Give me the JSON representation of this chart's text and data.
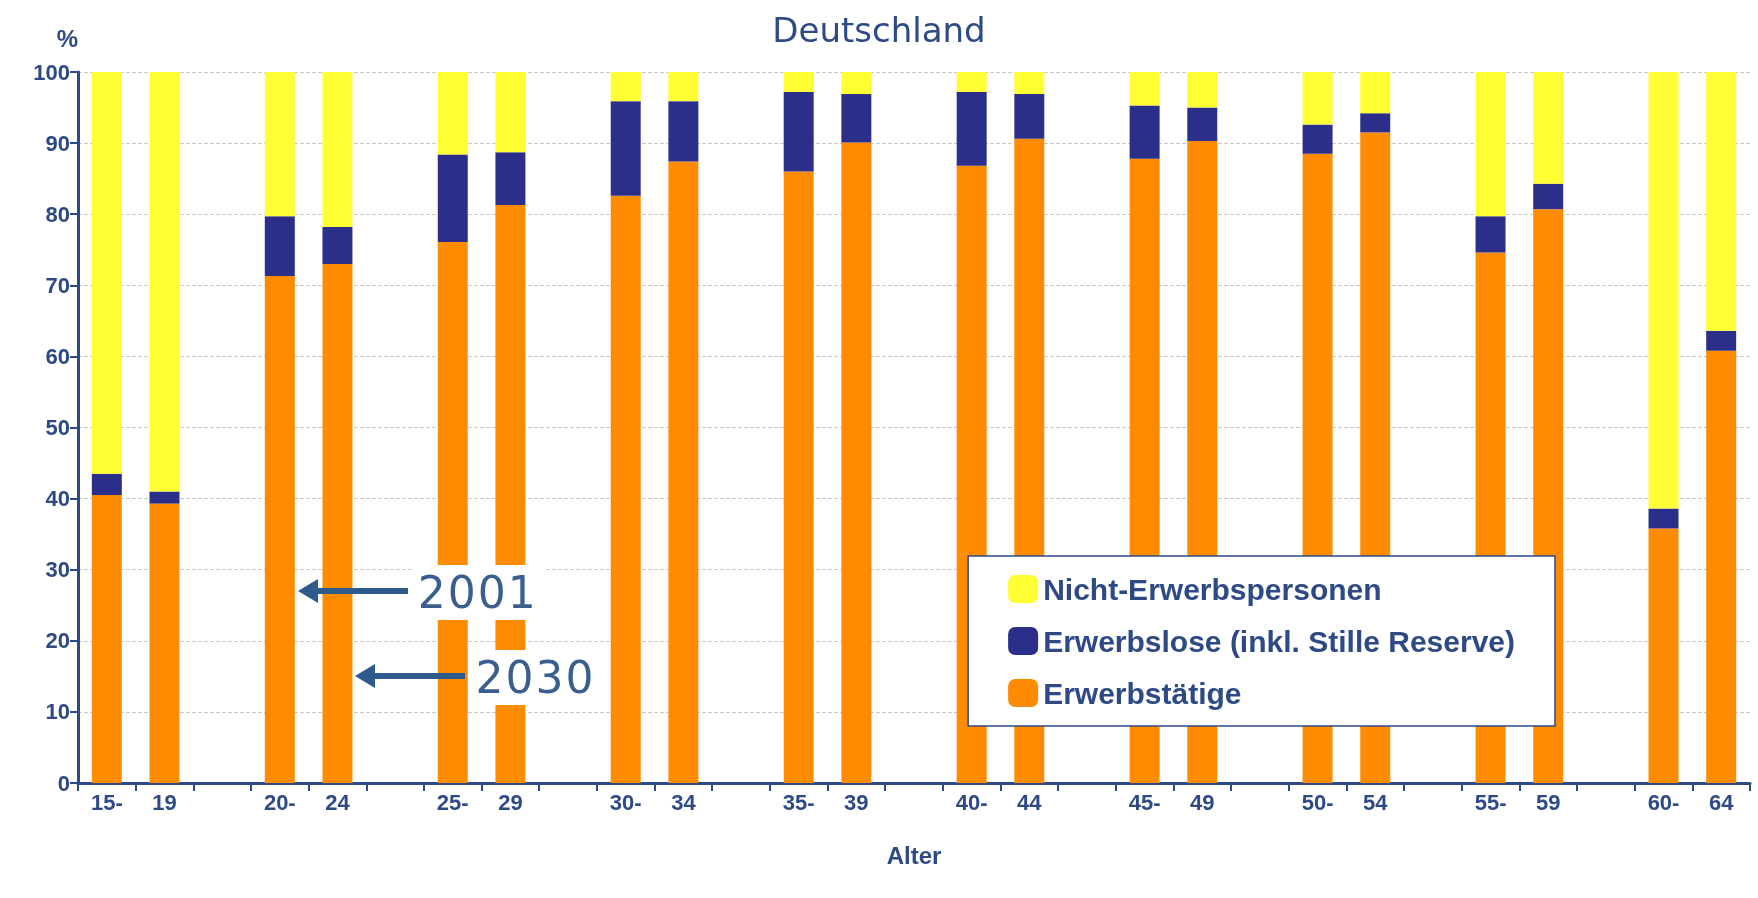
{
  "chart_data": {
    "type": "bar",
    "title": "Deutschland",
    "xlabel": "Alter",
    "ylabel": "%",
    "categories": [
      "15-",
      "19",
      null,
      "20-",
      "24",
      null,
      "25-",
      "29",
      null,
      "30-",
      "34",
      null,
      "35-",
      "39",
      null,
      "40-",
      "44",
      null,
      "45-",
      "49",
      null,
      "50-",
      "54",
      null,
      "55-",
      "59",
      null,
      "60-",
      "64"
    ],
    "stacked": true,
    "series": [
      {
        "name": "Erwerbstätige",
        "color": "#ff8c00",
        "values": [
          40.5,
          39.3,
          null,
          71.3,
          73,
          null,
          76.1,
          81.3,
          null,
          82.6,
          87.4,
          null,
          86,
          90.1,
          null,
          86.8,
          90.6,
          null,
          87.8,
          90.3,
          null,
          88.5,
          91.5,
          null,
          74.6,
          80.7,
          null,
          35.8,
          60.8
        ]
      },
      {
        "name": "Erwerbslose (inkl. Stille Reserve)",
        "color": "#2b2f8a",
        "values": [
          3,
          1.7,
          null,
          8.4,
          5.2,
          null,
          12.3,
          7.4,
          null,
          13.3,
          8.5,
          null,
          11.2,
          6.8,
          null,
          10.4,
          6.3,
          null,
          7.5,
          4.7,
          null,
          4.1,
          2.7,
          null,
          5.1,
          3.6,
          null,
          2.8,
          2.8
        ]
      },
      {
        "name": "Nicht-Erwerbspersonen",
        "color": "#ffff33",
        "values": [
          56.5,
          59,
          null,
          20.3,
          21.8,
          null,
          11.6,
          11.3,
          null,
          4.1,
          4.1,
          null,
          2.8,
          3.1,
          null,
          2.8,
          3.1,
          null,
          4.7,
          5,
          null,
          7.4,
          5.8,
          null,
          20.3,
          15.7,
          null,
          61.4,
          36.4
        ]
      }
    ],
    "ylim": [
      0,
      100
    ],
    "yticks": [
      0,
      10,
      20,
      30,
      40,
      50,
      60,
      70,
      80,
      90,
      100
    ],
    "grid": "y",
    "legend": "bottom right",
    "annotations": [
      "2001",
      "2030"
    ]
  }
}
